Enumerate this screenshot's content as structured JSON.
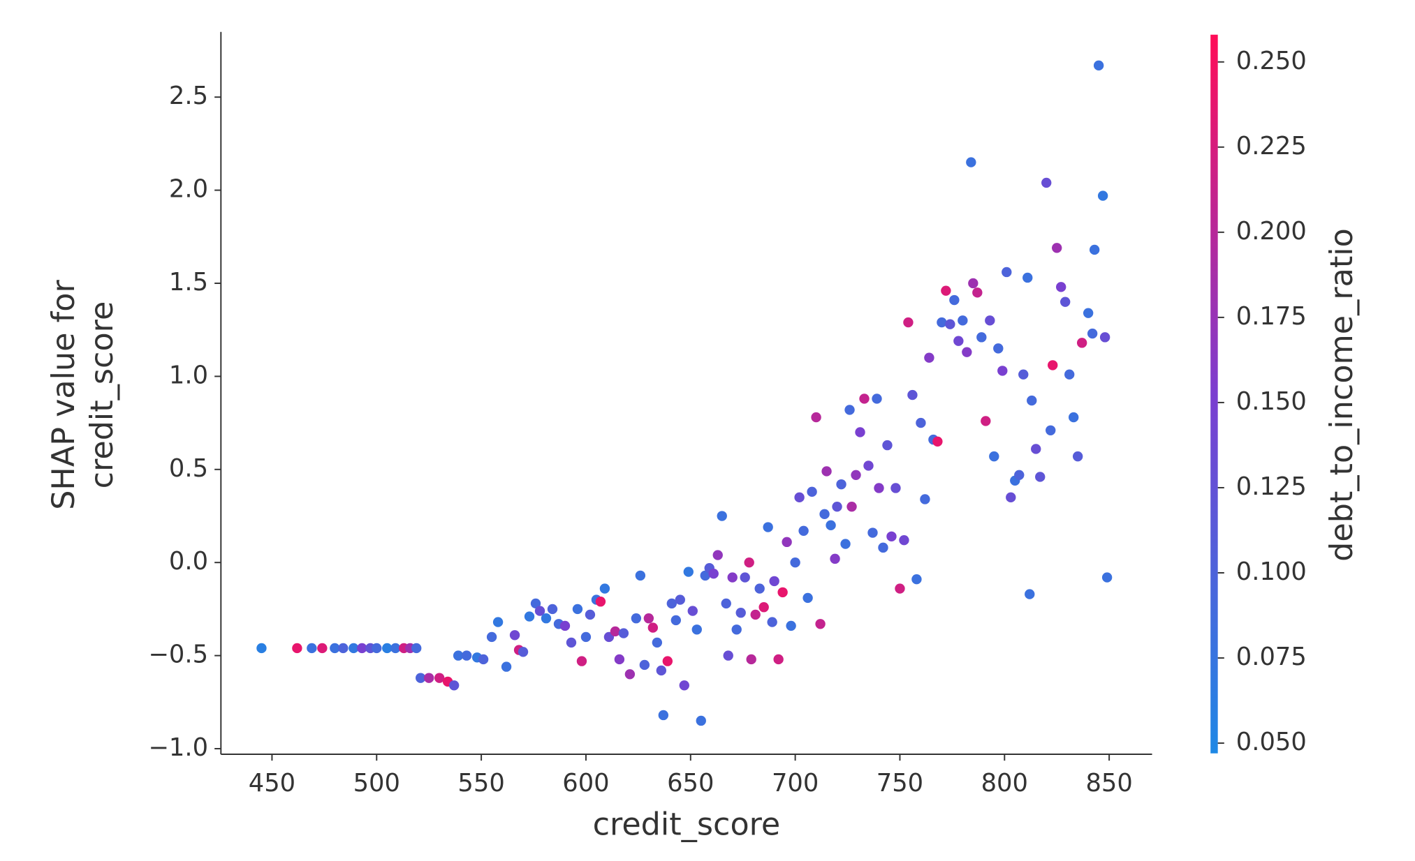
{
  "chart_data": {
    "type": "scatter",
    "xlabel": "credit_score",
    "ylabel": [
      "SHAP value for",
      "credit_score"
    ],
    "colorbar_label": "debt_to_income_ratio",
    "xlim": [
      425.6,
      870.5
    ],
    "ylim": [
      -1.03,
      2.85
    ],
    "xticks": [
      450,
      500,
      550,
      600,
      650,
      700,
      750,
      800,
      850
    ],
    "yticks": [
      {
        "value": -1,
        "label": "−1.0"
      },
      {
        "value": -0.5,
        "label": "−0.5"
      },
      {
        "value": 0,
        "label": "0.0"
      },
      0.5,
      {
        "value": 1,
        "label": "1.0"
      },
      1.5,
      {
        "value": 2,
        "label": "2.0"
      },
      2.5
    ],
    "clim": [
      0.047,
      0.258
    ],
    "cticks": [
      {
        "value": 0.05,
        "label": "0.050"
      },
      {
        "value": 0.075,
        "label": "0.075"
      },
      {
        "value": 0.1,
        "label": "0.100"
      },
      {
        "value": 0.125,
        "label": "0.125"
      },
      {
        "value": 0.15,
        "label": "0.150"
      },
      {
        "value": 0.175,
        "label": "0.175"
      },
      {
        "value": 0.2,
        "label": "0.200"
      },
      {
        "value": 0.225,
        "label": "0.225"
      },
      {
        "value": 0.25,
        "label": "0.250"
      }
    ],
    "cmap": [
      "#1e88e5",
      "#7b3ed0",
      "#ff0d57"
    ],
    "x": [
      445,
      462,
      469,
      474,
      480,
      484,
      489,
      493,
      497,
      500,
      505,
      509,
      513,
      516,
      519,
      521,
      525,
      530,
      534,
      537,
      539,
      543,
      548,
      551,
      555,
      558,
      562,
      566,
      568,
      570,
      573,
      576,
      578,
      581,
      584,
      587,
      590,
      593,
      596,
      598,
      600,
      602,
      605,
      607,
      609,
      611,
      614,
      616,
      618,
      621,
      624,
      626,
      628,
      630,
      632,
      634,
      636,
      637,
      639,
      641,
      643,
      645,
      647,
      649,
      651,
      653,
      655,
      657,
      659,
      661,
      663,
      665,
      667,
      668,
      670,
      672,
      674,
      676,
      678,
      679,
      681,
      683,
      685,
      687,
      689,
      690,
      692,
      694,
      696,
      698,
      700,
      702,
      704,
      706,
      708,
      710,
      712,
      714,
      715,
      717,
      719,
      720,
      722,
      724,
      726,
      727,
      729,
      731,
      733,
      735,
      737,
      739,
      740,
      742,
      744,
      746,
      748,
      750,
      752,
      754,
      756,
      758,
      760,
      762,
      764,
      766,
      768,
      770,
      772,
      774,
      776,
      778,
      780,
      782,
      784,
      785,
      787,
      789,
      791,
      793,
      795,
      797,
      799,
      801,
      803,
      805,
      807,
      809,
      811,
      812,
      813,
      815,
      817,
      820,
      822,
      823,
      825,
      827,
      829,
      831,
      833,
      835,
      837,
      840,
      842,
      843,
      845,
      847,
      848,
      849
    ],
    "y": [
      -0.46,
      -0.46,
      -0.46,
      -0.46,
      -0.46,
      -0.46,
      -0.46,
      -0.46,
      -0.46,
      -0.46,
      -0.46,
      -0.46,
      -0.46,
      -0.46,
      -0.46,
      -0.62,
      -0.62,
      -0.62,
      -0.64,
      -0.66,
      -0.5,
      -0.5,
      -0.51,
      -0.52,
      -0.4,
      -0.32,
      -0.56,
      -0.39,
      -0.47,
      -0.48,
      -0.29,
      -0.22,
      -0.26,
      -0.3,
      -0.25,
      -0.33,
      -0.34,
      -0.43,
      -0.25,
      -0.53,
      -0.4,
      -0.28,
      -0.2,
      -0.21,
      -0.14,
      -0.4,
      -0.37,
      -0.52,
      -0.38,
      -0.6,
      -0.3,
      -0.07,
      -0.55,
      -0.3,
      -0.35,
      -0.43,
      -0.58,
      -0.82,
      -0.53,
      -0.22,
      -0.31,
      -0.2,
      -0.66,
      -0.05,
      -0.26,
      -0.36,
      -0.85,
      -0.07,
      -0.03,
      -0.06,
      0.04,
      0.25,
      -0.22,
      -0.5,
      -0.08,
      -0.36,
      -0.27,
      -0.08,
      0.0,
      -0.52,
      -0.28,
      -0.14,
      -0.24,
      0.19,
      -0.32,
      -0.1,
      -0.52,
      -0.16,
      0.11,
      -0.34,
      0.0,
      0.35,
      0.17,
      -0.19,
      0.38,
      0.78,
      -0.33,
      0.26,
      0.49,
      0.2,
      0.02,
      0.3,
      0.42,
      0.1,
      0.82,
      0.3,
      0.47,
      0.7,
      0.88,
      0.52,
      0.16,
      0.88,
      0.4,
      0.08,
      0.63,
      0.14,
      0.4,
      -0.14,
      0.12,
      1.29,
      0.9,
      -0.09,
      0.75,
      0.34,
      1.1,
      0.66,
      0.65,
      1.29,
      1.46,
      1.28,
      1.41,
      1.19,
      1.3,
      1.13,
      2.15,
      1.5,
      1.45,
      1.21,
      0.76,
      1.3,
      0.57,
      1.15,
      1.03,
      1.56,
      0.35,
      0.44,
      0.47,
      1.01,
      1.53,
      -0.17,
      0.87,
      0.61,
      0.46,
      2.04,
      0.71,
      1.06,
      1.69,
      1.48,
      1.4,
      1.01,
      0.78,
      0.57,
      1.18,
      1.34,
      1.23,
      1.68,
      2.67,
      1.97,
      1.21,
      -0.08
    ],
    "c": [
      0.06,
      0.24,
      0.08,
      0.23,
      0.08,
      0.1,
      0.07,
      0.15,
      0.12,
      0.09,
      0.06,
      0.08,
      0.22,
      0.18,
      0.09,
      0.1,
      0.19,
      0.22,
      0.24,
      0.12,
      0.08,
      0.09,
      0.07,
      0.1,
      0.09,
      0.07,
      0.08,
      0.14,
      0.22,
      0.11,
      0.07,
      0.09,
      0.13,
      0.07,
      0.1,
      0.09,
      0.15,
      0.12,
      0.08,
      0.22,
      0.09,
      0.11,
      0.08,
      0.24,
      0.07,
      0.13,
      0.2,
      0.16,
      0.11,
      0.18,
      0.09,
      0.08,
      0.1,
      0.2,
      0.22,
      0.09,
      0.12,
      0.08,
      0.24,
      0.1,
      0.09,
      0.11,
      0.14,
      0.07,
      0.13,
      0.08,
      0.08,
      0.09,
      0.11,
      0.15,
      0.17,
      0.08,
      0.1,
      0.13,
      0.16,
      0.09,
      0.11,
      0.12,
      0.22,
      0.2,
      0.21,
      0.1,
      0.23,
      0.08,
      0.1,
      0.14,
      0.22,
      0.24,
      0.17,
      0.08,
      0.09,
      0.13,
      0.09,
      0.08,
      0.1,
      0.2,
      0.21,
      0.09,
      0.18,
      0.08,
      0.16,
      0.12,
      0.1,
      0.08,
      0.09,
      0.19,
      0.17,
      0.15,
      0.21,
      0.14,
      0.09,
      0.09,
      0.16,
      0.09,
      0.12,
      0.15,
      0.13,
      0.22,
      0.14,
      0.22,
      0.12,
      0.08,
      0.1,
      0.09,
      0.16,
      0.09,
      0.24,
      0.09,
      0.23,
      0.12,
      0.09,
      0.14,
      0.09,
      0.16,
      0.08,
      0.18,
      0.21,
      0.09,
      0.22,
      0.13,
      0.08,
      0.09,
      0.15,
      0.1,
      0.13,
      0.08,
      0.1,
      0.11,
      0.08,
      0.08,
      0.09,
      0.13,
      0.12,
      0.13,
      0.09,
      0.24,
      0.18,
      0.15,
      0.12,
      0.09,
      0.08,
      0.11,
      0.22,
      0.08,
      0.09,
      0.08,
      0.08,
      0.07,
      0.13,
      0.08
    ]
  }
}
